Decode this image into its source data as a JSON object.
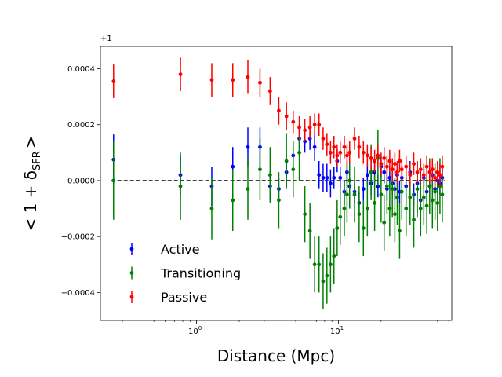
{
  "chart_data": {
    "type": "scatter",
    "title": "",
    "xlabel": "Distance (Mpc)",
    "ylabel": "< 1 + δ_SFR >",
    "ylabel_main": "< 1 + δ",
    "ylabel_sub": "SFR",
    "ylabel_close": ">",
    "offset_label": "+1",
    "x_scale": "log",
    "xlim": [
      0.21,
      63
    ],
    "ylim": [
      -0.0005,
      0.00048
    ],
    "x_ticks": [
      {
        "value": 1,
        "base": "10",
        "exp": "0"
      },
      {
        "value": 10,
        "base": "10",
        "exp": "1"
      }
    ],
    "y_ticks": [
      {
        "value": 0.0004,
        "label": "0.0004"
      },
      {
        "value": 0.0002,
        "label": "0.0002"
      },
      {
        "value": 0.0,
        "label": "0.0000"
      },
      {
        "value": -0.0002,
        "label": "−0.0002"
      },
      {
        "value": -0.0004,
        "label": "−0.0004"
      }
    ],
    "reference_line": {
      "y": 0.0,
      "style": "dashed",
      "color": "#000000"
    },
    "legend_position": "lower-left",
    "series": [
      {
        "name": "Active",
        "color": "#0000ff",
        "points": [
          [
            0.26,
            7.5e-05,
            9e-05
          ],
          [
            0.77,
            2e-05,
            7e-05
          ],
          [
            1.28,
            -2e-05,
            7e-05
          ],
          [
            1.8,
            5e-05,
            7e-05
          ],
          [
            2.3,
            0.00012,
            7e-05
          ],
          [
            2.8,
            0.00012,
            7e-05
          ],
          [
            3.3,
            -2e-05,
            5e-05
          ],
          [
            3.8,
            -3e-05,
            4e-05
          ],
          [
            4.3,
            3e-05,
            5e-05
          ],
          [
            4.8,
            9e-05,
            5e-05
          ],
          [
            5.3,
            0.00015,
            5e-05
          ],
          [
            5.8,
            0.00014,
            4e-05
          ],
          [
            6.3,
            0.00015,
            4e-05
          ],
          [
            6.8,
            0.00012,
            5e-05
          ],
          [
            7.3,
            2e-05,
            5e-05
          ],
          [
            7.8,
            1e-05,
            5e-05
          ],
          [
            8.3,
            1e-05,
            5e-05
          ],
          [
            8.8,
            -1e-05,
            5e-05
          ],
          [
            9.3,
            1e-05,
            4e-05
          ],
          [
            9.8,
            7e-05,
            4e-05
          ],
          [
            10.3,
            1e-05,
            4e-05
          ],
          [
            11,
            -4e-05,
            4e-05
          ],
          [
            11.5,
            3e-05,
            4e-05
          ],
          [
            12,
            -2e-05,
            4e-05
          ],
          [
            13,
            -4e-05,
            4e-05
          ],
          [
            14,
            -8e-05,
            4e-05
          ],
          [
            15,
            -3e-05,
            4e-05
          ],
          [
            16,
            2e-05,
            4e-05
          ],
          [
            17,
            -1e-05,
            4e-05
          ],
          [
            18,
            3e-05,
            4e-05
          ],
          [
            19,
            -2e-05,
            4e-05
          ],
          [
            20,
            5e-05,
            4e-05
          ],
          [
            21,
            3e-05,
            4e-05
          ],
          [
            22,
            -3e-05,
            4e-05
          ],
          [
            23,
            1e-05,
            4e-05
          ],
          [
            24,
            -1e-05,
            4e-05
          ],
          [
            25,
            -3e-05,
            4e-05
          ],
          [
            26,
            2e-05,
            4e-05
          ],
          [
            27,
            -4e-05,
            4e-05
          ],
          [
            28,
            1e-05,
            4e-05
          ],
          [
            30,
            -2e-05,
            4e-05
          ],
          [
            32,
            3e-05,
            4e-05
          ],
          [
            34,
            -5e-05,
            4e-05
          ],
          [
            36,
            -1e-05,
            4e-05
          ],
          [
            38,
            -7e-05,
            4e-05
          ],
          [
            40,
            1e-05,
            4e-05
          ],
          [
            42,
            -4e-05,
            4e-05
          ],
          [
            44,
            -2e-05,
            4e-05
          ],
          [
            46,
            2e-05,
            4e-05
          ],
          [
            48,
            -3e-05,
            4e-05
          ],
          [
            50,
            0.0,
            4e-05
          ],
          [
            52,
            -1e-05,
            4e-05
          ],
          [
            54,
            1e-05,
            4e-05
          ]
        ]
      },
      {
        "name": "Transitioning",
        "color": "#008000",
        "points": [
          [
            0.26,
            0.0,
            0.00014
          ],
          [
            0.77,
            -2e-05,
            0.00012
          ],
          [
            1.28,
            -0.0001,
            0.00011
          ],
          [
            1.8,
            -7e-05,
            0.00011
          ],
          [
            2.3,
            -3e-05,
            0.00011
          ],
          [
            2.8,
            4e-05,
            0.00011
          ],
          [
            3.3,
            2e-05,
            0.0001
          ],
          [
            3.8,
            -7e-05,
            0.0001
          ],
          [
            4.3,
            7e-05,
            0.0001
          ],
          [
            4.8,
            4e-05,
            0.0001
          ],
          [
            5.3,
            0.0001,
            0.0001
          ],
          [
            5.8,
            -0.00012,
            0.0001
          ],
          [
            6.3,
            -0.00018,
            0.0001
          ],
          [
            6.8,
            -0.0003,
            0.0001
          ],
          [
            7.3,
            -0.0003,
            0.0001
          ],
          [
            7.8,
            -0.00036,
            0.0001
          ],
          [
            8.3,
            -0.00034,
            0.0001
          ],
          [
            8.8,
            -0.0003,
            0.0001
          ],
          [
            9.3,
            -0.00027,
            0.0001
          ],
          [
            9.8,
            -0.00017,
            0.0001
          ],
          [
            10.3,
            -0.00013,
            0.0001
          ],
          [
            11,
            -0.0001,
            0.0001
          ],
          [
            11.5,
            -5e-05,
            0.0001
          ],
          [
            12,
            0.0,
            0.0001
          ],
          [
            13,
            -5e-05,
            0.0001
          ],
          [
            14,
            -0.00012,
            0.0001
          ],
          [
            15,
            -0.00017,
            0.0001
          ],
          [
            16,
            -0.0001,
            0.0001
          ],
          [
            17,
            3e-05,
            0.0001
          ],
          [
            18,
            -8e-05,
            0.0001
          ],
          [
            19,
            8e-05,
            0.0001
          ],
          [
            20,
            -5e-05,
            0.0001
          ],
          [
            21,
            -0.00015,
            0.0001
          ],
          [
            22,
            -2e-05,
            0.0001
          ],
          [
            23,
            -0.0001,
            0.0001
          ],
          [
            24,
            -3e-05,
            0.0001
          ],
          [
            25,
            -0.00012,
            0.0001
          ],
          [
            26,
            -6e-05,
            0.0001
          ],
          [
            27,
            -0.00018,
            0.0001
          ],
          [
            28,
            -4e-05,
            0.0001
          ],
          [
            30,
            -0.0001,
            0.0001
          ],
          [
            32,
            -6e-05,
            0.0001
          ],
          [
            34,
            -0.00014,
            0.0001
          ],
          [
            36,
            -3e-05,
            0.0001
          ],
          [
            38,
            -0.0001,
            0.0001
          ],
          [
            40,
            -6e-05,
            0.0001
          ],
          [
            42,
            -9e-05,
            0.0001
          ],
          [
            44,
            -2e-05,
            0.0001
          ],
          [
            46,
            -7e-05,
            0.0001
          ],
          [
            48,
            -4e-05,
            0.0001
          ],
          [
            50,
            -8e-05,
            0.0001
          ],
          [
            52,
            -2e-05,
            0.0001
          ],
          [
            54,
            -5e-05,
            0.0001
          ]
        ]
      },
      {
        "name": "Passive",
        "color": "#ff0000",
        "points": [
          [
            0.26,
            0.000355,
            6e-05
          ],
          [
            0.77,
            0.00038,
            6e-05
          ],
          [
            1.28,
            0.00036,
            6e-05
          ],
          [
            1.8,
            0.00036,
            6e-05
          ],
          [
            2.3,
            0.00037,
            6e-05
          ],
          [
            2.8,
            0.00035,
            5e-05
          ],
          [
            3.3,
            0.00032,
            5e-05
          ],
          [
            3.8,
            0.00025,
            5e-05
          ],
          [
            4.3,
            0.00023,
            5e-05
          ],
          [
            4.8,
            0.00021,
            4e-05
          ],
          [
            5.3,
            0.00019,
            4e-05
          ],
          [
            5.8,
            0.00018,
            4e-05
          ],
          [
            6.3,
            0.00019,
            4e-05
          ],
          [
            6.8,
            0.0002,
            4e-05
          ],
          [
            7.3,
            0.0002,
            4e-05
          ],
          [
            7.8,
            0.00015,
            4e-05
          ],
          [
            8.3,
            0.00013,
            4e-05
          ],
          [
            8.8,
            0.0001,
            4e-05
          ],
          [
            9.3,
            0.00012,
            4e-05
          ],
          [
            9.8,
            9e-05,
            4e-05
          ],
          [
            10.3,
            0.0001,
            4e-05
          ],
          [
            11,
            0.00012,
            4e-05
          ],
          [
            11.5,
            9e-05,
            4e-05
          ],
          [
            12,
            0.0001,
            4e-05
          ],
          [
            13,
            0.00015,
            4e-05
          ],
          [
            14,
            0.00012,
            4e-05
          ],
          [
            15,
            0.0001,
            4e-05
          ],
          [
            16,
            9e-05,
            4e-05
          ],
          [
            17,
            8e-05,
            4e-05
          ],
          [
            18,
            7e-05,
            4e-05
          ],
          [
            19,
            9e-05,
            4e-05
          ],
          [
            20,
            6e-05,
            4e-05
          ],
          [
            21,
            8e-05,
            4e-05
          ],
          [
            22,
            5e-05,
            4e-05
          ],
          [
            23,
            7e-05,
            4e-05
          ],
          [
            24,
            4e-05,
            4e-05
          ],
          [
            25,
            6e-05,
            4e-05
          ],
          [
            26,
            3e-05,
            4e-05
          ],
          [
            27,
            7e-05,
            4e-05
          ],
          [
            28,
            4e-05,
            4e-05
          ],
          [
            30,
            5e-05,
            4e-05
          ],
          [
            32,
            2e-05,
            4e-05
          ],
          [
            34,
            6e-05,
            4e-05
          ],
          [
            36,
            3e-05,
            4e-05
          ],
          [
            38,
            4e-05,
            4e-05
          ],
          [
            40,
            2e-05,
            4e-05
          ],
          [
            42,
            5e-05,
            4e-05
          ],
          [
            44,
            3e-05,
            4e-05
          ],
          [
            46,
            4e-05,
            4e-05
          ],
          [
            48,
            1e-05,
            4e-05
          ],
          [
            50,
            3e-05,
            4e-05
          ],
          [
            52,
            2e-05,
            4e-05
          ],
          [
            54,
            5e-05,
            4e-05
          ]
        ]
      }
    ]
  }
}
